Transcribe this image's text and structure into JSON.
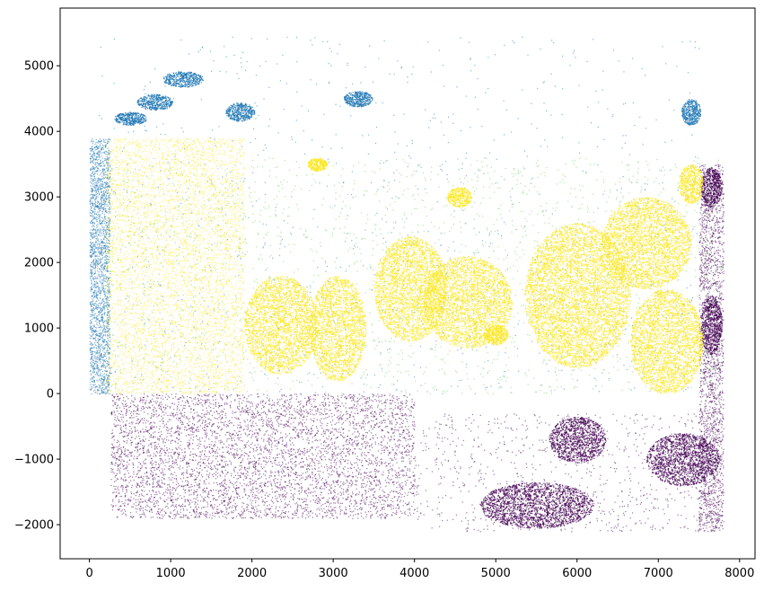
{
  "chart_data": {
    "type": "scatter",
    "title": "",
    "xlabel": "",
    "ylabel": "",
    "xlim": [
      -360,
      8190
    ],
    "ylim": [
      -2520,
      5880
    ],
    "xticks": [
      0,
      1000,
      2000,
      3000,
      4000,
      5000,
      6000,
      7000,
      8000
    ],
    "yticks": [
      -2000,
      -1000,
      0,
      1000,
      2000,
      3000,
      4000,
      5000
    ],
    "xtick_labels": [
      "0",
      "1000",
      "2000",
      "3000",
      "4000",
      "5000",
      "6000",
      "7000",
      "8000"
    ],
    "ytick_labels": [
      "−2000",
      "−1000",
      "0",
      "1000",
      "2000",
      "3000",
      "4000",
      "5000"
    ],
    "grid": false,
    "legend": "none",
    "marker_size_px": 1,
    "series": [
      {
        "color": "#1f77b4",
        "regions": [
          {
            "x": [
              0,
              7500
            ],
            "y": [
              0,
              5450
            ],
            "density": "sparse"
          },
          {
            "x": [
              0,
              250
            ],
            "y": [
              0,
              3900
            ],
            "density": "medium"
          }
        ],
        "clusters": [
          {
            "x": 1150,
            "y": 4800,
            "rx": 250,
            "ry": 120
          },
          {
            "x": 800,
            "y": 4450,
            "rx": 220,
            "ry": 120
          },
          {
            "x": 1850,
            "y": 4300,
            "rx": 180,
            "ry": 140
          },
          {
            "x": 3300,
            "y": 4500,
            "rx": 180,
            "ry": 120
          },
          {
            "x": 500,
            "y": 4200,
            "rx": 200,
            "ry": 100
          },
          {
            "x": 7400,
            "y": 4300,
            "rx": 120,
            "ry": 200
          }
        ]
      },
      {
        "color": "#440154",
        "regions": [
          {
            "x": [
              260,
              4000
            ],
            "y": [
              -1900,
              0
            ],
            "density": "dense"
          },
          {
            "x": [
              4000,
              7750
            ],
            "y": [
              -2100,
              -300
            ],
            "density": "sparse"
          },
          {
            "x": [
              7500,
              7800
            ],
            "y": [
              -2100,
              3500
            ],
            "density": "medium"
          }
        ],
        "clusters": [
          {
            "x": 5500,
            "y": -1700,
            "rx": 700,
            "ry": 350
          },
          {
            "x": 6000,
            "y": -700,
            "rx": 350,
            "ry": 350
          },
          {
            "x": 7300,
            "y": -1000,
            "rx": 450,
            "ry": 400
          },
          {
            "x": 7650,
            "y": 3150,
            "rx": 130,
            "ry": 300
          },
          {
            "x": 7650,
            "y": 1050,
            "rx": 130,
            "ry": 450
          }
        ]
      },
      {
        "color": "#6ccd5a",
        "regions": [
          {
            "x": [
              200,
              7800
            ],
            "y": [
              0,
              3600
            ],
            "density": "medium"
          }
        ],
        "clusters": []
      },
      {
        "color": "#fde725",
        "regions": [
          {
            "x": [
              200,
              1900
            ],
            "y": [
              0,
              3900
            ],
            "density": "dense"
          },
          {
            "x": 5300,
            "y": [
              0,
              3500
            ],
            "density": "none"
          }
        ],
        "clusters": [
          {
            "x": 2350,
            "y": 1050,
            "rx": 450,
            "ry": 750
          },
          {
            "x": 3050,
            "y": 1000,
            "rx": 350,
            "ry": 800
          },
          {
            "x": 3950,
            "y": 1600,
            "rx": 450,
            "ry": 800
          },
          {
            "x": 4650,
            "y": 1400,
            "rx": 550,
            "ry": 700
          },
          {
            "x": 6000,
            "y": 1500,
            "rx": 650,
            "ry": 1100
          },
          {
            "x": 6850,
            "y": 2300,
            "rx": 550,
            "ry": 700
          },
          {
            "x": 7100,
            "y": 800,
            "rx": 450,
            "ry": 800
          },
          {
            "x": 7400,
            "y": 3200,
            "rx": 150,
            "ry": 300
          },
          {
            "x": 4550,
            "y": 3000,
            "rx": 150,
            "ry": 150
          },
          {
            "x": 2800,
            "y": 3500,
            "rx": 120,
            "ry": 100
          },
          {
            "x": 5000,
            "y": 900,
            "rx": 150,
            "ry": 150
          }
        ]
      }
    ]
  }
}
